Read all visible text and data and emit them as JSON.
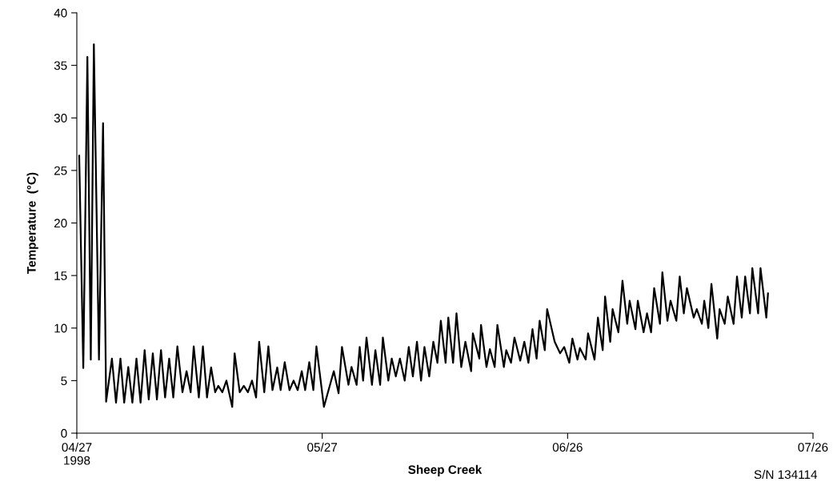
{
  "chart_data": {
    "type": "line",
    "xlabel": "Sheep Creek",
    "ylabel": "Temperature  (°C)",
    "annotations": [
      "S/N 134114"
    ],
    "xlim": [
      "1998-04-27",
      "1998-07-26"
    ],
    "xticks": [
      {
        "value": "1998-04-27",
        "label": "04/27\n1998"
      },
      {
        "value": "1998-05-27",
        "label": "05/27"
      },
      {
        "value": "1998-06-26",
        "label": "06/26"
      },
      {
        "value": "1998-07-26",
        "label": "07/26"
      }
    ],
    "ylim": [
      0,
      40
    ],
    "yticks": [
      0,
      5,
      10,
      15,
      20,
      25,
      30,
      35,
      40
    ],
    "grid": false,
    "legend": false,
    "marker": "none",
    "line_style": "solid",
    "series": [
      {
        "color": "#000000",
        "x": [
          "1998-04-27T07:00",
          "1998-04-27T19:00",
          "1998-04-28T07:00",
          "1998-04-28T17:00",
          "1998-04-29T02:00",
          "1998-04-29T17:00",
          "1998-04-30T05:00",
          "1998-04-30T14:00",
          "1998-05-01T07:00",
          "1998-05-01T19:00",
          "1998-05-02T08:00",
          "1998-05-02T19:00",
          "1998-05-03T07:00",
          "1998-05-03T19:00",
          "1998-05-04T07:00",
          "1998-05-04T19:00",
          "1998-05-05T07:00",
          "1998-05-05T19:00",
          "1998-05-06T07:00",
          "1998-05-06T19:00",
          "1998-05-07T07:00",
          "1998-05-07T19:00",
          "1998-05-08T07:00",
          "1998-05-08T19:00",
          "1998-05-09T07:00",
          "1998-05-09T22:00",
          "1998-05-10T10:00",
          "1998-05-10T22:00",
          "1998-05-11T07:00",
          "1998-05-11T22:00",
          "1998-05-12T10:00",
          "1998-05-12T22:00",
          "1998-05-13T10:00",
          "1998-05-13T22:00",
          "1998-05-14T07:00",
          "1998-05-14T19:00",
          "1998-05-15T07:00",
          "1998-05-16T00:00",
          "1998-05-16T07:00",
          "1998-05-16T22:00",
          "1998-05-17T10:00",
          "1998-05-17T22:00",
          "1998-05-18T10:00",
          "1998-05-18T22:00",
          "1998-05-19T07:00",
          "1998-05-19T22:00",
          "1998-05-20T10:00",
          "1998-05-20T22:00",
          "1998-05-21T12:00",
          "1998-05-21T22:00",
          "1998-05-22T10:00",
          "1998-05-23T00:00",
          "1998-05-23T12:00",
          "1998-05-24T00:00",
          "1998-05-24T12:00",
          "1998-05-24T22:00",
          "1998-05-25T10:00",
          "1998-05-25T22:00",
          "1998-05-26T07:00",
          "1998-05-27T05:00",
          "1998-05-28T10:00",
          "1998-05-29T00:00",
          "1998-05-29T10:00",
          "1998-05-30T05:00",
          "1998-05-30T14:00",
          "1998-05-31T05:00",
          "1998-05-31T14:00",
          "1998-06-01T00:00",
          "1998-06-01T10:00",
          "1998-06-02T02:00",
          "1998-06-02T12:00",
          "1998-06-03T02:00",
          "1998-06-03T10:00",
          "1998-06-04T02:00",
          "1998-06-04T12:00",
          "1998-06-05T00:00",
          "1998-06-05T12:00",
          "1998-06-06T02:00",
          "1998-06-06T14:00",
          "1998-06-07T02:00",
          "1998-06-07T14:00",
          "1998-06-08T02:00",
          "1998-06-08T12:00",
          "1998-06-09T02:00",
          "1998-06-09T14:00",
          "1998-06-10T02:00",
          "1998-06-10T12:00",
          "1998-06-11T02:00",
          "1998-06-11T10:00",
          "1998-06-12T00:00",
          "1998-06-12T10:00",
          "1998-06-13T00:00",
          "1998-06-13T12:00",
          "1998-06-14T05:00",
          "1998-06-14T10:00",
          "1998-06-15T05:00",
          "1998-06-15T10:00",
          "1998-06-16T02:00",
          "1998-06-16T12:00",
          "1998-06-17T02:00",
          "1998-06-17T10:00",
          "1998-06-18T05:00",
          "1998-06-18T12:00",
          "1998-06-19T02:00",
          "1998-06-19T12:00",
          "1998-06-20T05:00",
          "1998-06-20T17:00",
          "1998-06-21T05:00",
          "1998-06-21T17:00",
          "1998-06-22T05:00",
          "1998-06-22T14:00",
          "1998-06-23T05:00",
          "1998-06-23T12:00",
          "1998-06-24T10:00",
          "1998-06-25T02:00",
          "1998-06-25T14:00",
          "1998-06-26T05:00",
          "1998-06-26T14:00",
          "1998-06-27T05:00",
          "1998-06-27T12:00",
          "1998-06-28T05:00",
          "1998-06-28T12:00",
          "1998-06-29T07:00",
          "1998-06-29T17:00",
          "1998-06-30T07:00",
          "1998-06-30T14:00",
          "1998-07-01T05:00",
          "1998-07-01T12:00",
          "1998-07-02T05:00",
          "1998-07-02T17:00",
          "1998-07-03T07:00",
          "1998-07-03T14:00",
          "1998-07-04T07:00",
          "1998-07-04T14:00",
          "1998-07-05T07:00",
          "1998-07-05T17:00",
          "1998-07-06T05:00",
          "1998-07-06T14:00",
          "1998-07-07T07:00",
          "1998-07-07T14:00",
          "1998-07-08T05:00",
          "1998-07-08T14:00",
          "1998-07-09T07:00",
          "1998-07-09T17:00",
          "1998-07-10T05:00",
          "1998-07-10T14:00",
          "1998-07-11T10:00",
          "1998-07-11T19:00",
          "1998-07-12T10:00",
          "1998-07-12T17:00",
          "1998-07-13T05:00",
          "1998-07-13T14:00",
          "1998-07-14T07:00",
          "1998-07-14T14:00",
          "1998-07-15T05:00",
          "1998-07-15T14:00",
          "1998-07-16T07:00",
          "1998-07-16T17:00",
          "1998-07-17T07:00",
          "1998-07-17T17:00",
          "1998-07-18T07:00",
          "1998-07-18T14:00",
          "1998-07-19T07:00",
          "1998-07-19T14:00",
          "1998-07-20T07:00",
          "1998-07-20T12:00"
        ],
        "values": [
          26.4,
          6.2,
          35.8,
          7,
          37,
          7,
          29.5,
          3,
          7.1,
          2.9,
          7.1,
          2.9,
          6.3,
          2.9,
          7.1,
          2.9,
          7.9,
          3.2,
          7.6,
          3.2,
          7.9,
          3.4,
          7.1,
          3.4,
          8.25,
          3.9,
          5.9,
          3.9,
          8.25,
          3.4,
          8.25,
          3.4,
          6.25,
          3.9,
          4.5,
          3.9,
          5.0,
          2.5,
          7.6,
          3.9,
          4.5,
          3.9,
          5.0,
          3.4,
          8.7,
          3.9,
          8.25,
          4.1,
          6.25,
          4.1,
          6.75,
          4.1,
          5.0,
          4.1,
          5.9,
          4.1,
          6.75,
          4.1,
          8.25,
          2.5,
          5.9,
          3.8,
          8.2,
          4.6,
          6.3,
          4.6,
          8.2,
          5.0,
          9.1,
          4.6,
          7.9,
          4.6,
          9.1,
          5.0,
          7.1,
          5.4,
          7.1,
          5.0,
          8.2,
          5.4,
          8.7,
          5.0,
          8.2,
          5.4,
          8.7,
          6.7,
          10.7,
          6.7,
          11.0,
          6.7,
          11.4,
          6.3,
          8.7,
          5.9,
          9.5,
          7.1,
          10.3,
          6.3,
          8.0,
          6.3,
          10.3,
          6.3,
          7.9,
          6.7,
          9.1,
          6.9,
          8.7,
          6.7,
          9.9,
          7.1,
          10.7,
          7.9,
          11.8,
          8.7,
          7.6,
          8.2,
          6.7,
          9.0,
          7.0,
          8.1,
          7.0,
          9.5,
          7.0,
          11.0,
          7.9,
          13.0,
          8.7,
          11.8,
          9.6,
          14.5,
          10.4,
          12.6,
          9.9,
          12.6,
          9.6,
          11.4,
          9.6,
          13.8,
          10.4,
          15.3,
          10.7,
          12.6,
          10.7,
          14.9,
          11.4,
          13.8,
          11.0,
          11.8,
          10.4,
          12.6,
          10.0,
          14.2,
          9.0,
          11.8,
          10.4,
          13.0,
          10.4,
          14.9,
          11.0,
          14.9,
          11.4,
          15.7,
          11.4,
          15.7,
          11.0,
          13.3
        ]
      }
    ]
  }
}
